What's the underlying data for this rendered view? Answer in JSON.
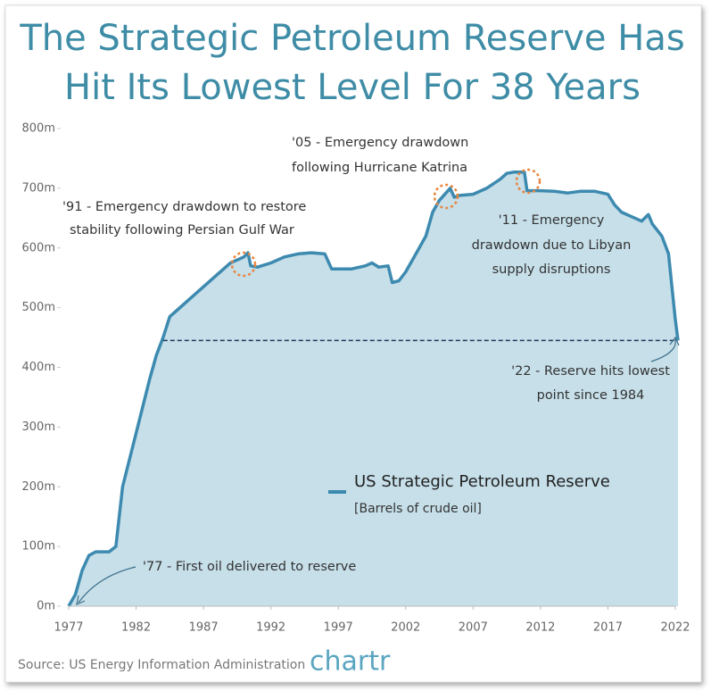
{
  "chart_data": {
    "type": "area",
    "title": [
      "The Strategic Petroleum Reserve Has",
      "Hit Its Lowest Level For 38 Years"
    ],
    "x": [
      1977,
      1977.5,
      1978,
      1978.5,
      1979,
      1980,
      1980.5,
      1981,
      1982,
      1983,
      1983.5,
      1984,
      1984.5,
      1985,
      1986,
      1987,
      1988,
      1989,
      1990,
      1990.3,
      1990.5,
      1991,
      1992,
      1993,
      1994,
      1995,
      1996,
      1996.5,
      1997,
      1998,
      1999,
      1999.5,
      2000,
      2000.7,
      2001,
      2001.5,
      2002,
      2003,
      2003.5,
      2004,
      2004.5,
      2005.3,
      2005.6,
      2006,
      2007,
      2008,
      2009,
      2009.5,
      2010,
      2010.8,
      2011,
      2012,
      2013,
      2014,
      2015,
      2016,
      2017,
      2017.5,
      2018,
      2019,
      2019.5,
      2020,
      2020.3,
      2021,
      2021.5,
      2022,
      2022.2
    ],
    "series": [
      {
        "name": "US Strategic Petroleum Reserve",
        "unit": "[Barrels of crude oil]",
        "color": "#3d8ab0",
        "fill": "#c6dfe9",
        "values": [
          0,
          20,
          60,
          85,
          91,
          91,
          100,
          200,
          290,
          380,
          420,
          450,
          485,
          495,
          515,
          535,
          555,
          575,
          585,
          592,
          570,
          568,
          575,
          585,
          590,
          592,
          590,
          565,
          565,
          565,
          570,
          575,
          568,
          570,
          542,
          545,
          560,
          600,
          620,
          660,
          680,
          700,
          685,
          688,
          690,
          700,
          715,
          725,
          727,
          727,
          696,
          696,
          695,
          692,
          695,
          695,
          690,
          672,
          660,
          650,
          645,
          656,
          640,
          620,
          590,
          480,
          445
        ]
      }
    ],
    "reference_line": {
      "value": 445,
      "from": 1984
    },
    "xlim": [
      1977,
      2022
    ],
    "xticks": [
      1977,
      1982,
      1987,
      1992,
      1997,
      2002,
      2007,
      2012,
      2017,
      2022
    ],
    "ylim": [
      0,
      800
    ],
    "yticks": [
      {
        "value": 0,
        "label": "0m"
      },
      {
        "value": 100,
        "label": "100m"
      },
      {
        "value": 200,
        "label": "200m"
      },
      {
        "value": 300,
        "label": "300m"
      },
      {
        "value": 400,
        "label": "400m"
      },
      {
        "value": 500,
        "label": "500m"
      },
      {
        "value": 600,
        "label": "600m"
      },
      {
        "value": 700,
        "label": "700m"
      },
      {
        "value": 800,
        "label": "800m"
      }
    ],
    "annotations": [
      {
        "lines": [
          "'91 - Emergency drawdown to restore",
          "stability following Persian Gulf War"
        ]
      },
      {
        "lines": [
          "'05 - Emergency drawdown",
          "following Hurricane Katrina"
        ]
      },
      {
        "lines": [
          "'11 - Emergency",
          "drawdown due to Libyan",
          "supply disruptions"
        ]
      },
      {
        "lines": [
          "'22 - Reserve hits lowest",
          "point since 1984"
        ]
      },
      {
        "lines": [
          "'77 - First oil delivered to reserve"
        ]
      }
    ],
    "source": "Source: US Energy Information Administration",
    "logo": "chartr"
  }
}
